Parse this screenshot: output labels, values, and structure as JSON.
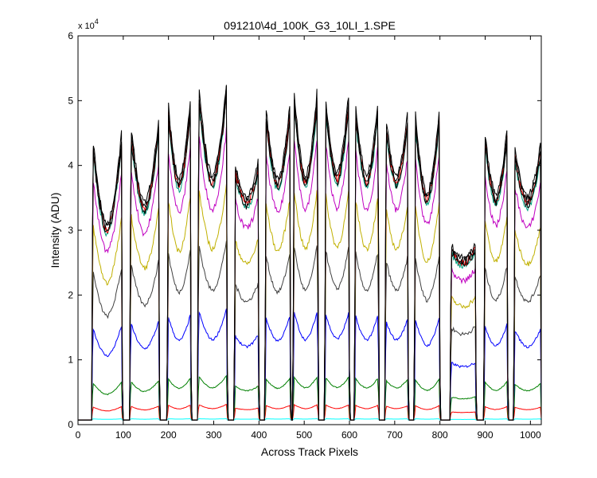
{
  "chart_data": {
    "type": "line",
    "title": "091210\\4d_100K_G3_10LI_1.SPE",
    "xlabel": "Across Track Pixels",
    "ylabel": "Intensity (ADU)",
    "y_multiplier_label": "x 10",
    "y_multiplier_exponent": "4",
    "xlim": [
      0,
      1024
    ],
    "ylim": [
      0,
      60000
    ],
    "x_ticks": [
      0,
      100,
      200,
      300,
      400,
      500,
      600,
      700,
      800,
      900,
      1000
    ],
    "y_ticks": [
      0,
      1,
      2,
      3,
      4,
      5,
      6
    ],
    "y_tick_scale": 10000,
    "grid": false,
    "legend": "none",
    "pattern": {
      "baseline": 700,
      "segments": [
        {
          "start": 30,
          "end": 98,
          "edge": 0.97,
          "center": 0.64
        },
        {
          "start": 114,
          "end": 180,
          "edge": 1.01,
          "center": 0.71
        },
        {
          "start": 197,
          "end": 250,
          "edge": 1.08,
          "center": 0.79
        },
        {
          "start": 264,
          "end": 330,
          "edge": 1.14,
          "center": 0.8
        },
        {
          "start": 345,
          "end": 400,
          "edge": 0.86,
          "center": 0.73
        },
        {
          "start": 413,
          "end": 470,
          "edge": 1.06,
          "center": 0.79
        },
        {
          "start": 475,
          "end": 531,
          "edge": 1.13,
          "center": 0.8
        },
        {
          "start": 545,
          "end": 600,
          "edge": 1.1,
          "center": 0.81
        },
        {
          "start": 611,
          "end": 665,
          "edge": 1.08,
          "center": 0.8
        },
        {
          "start": 678,
          "end": 730,
          "edge": 1.03,
          "center": 0.8
        },
        {
          "start": 743,
          "end": 800,
          "edge": 1.05,
          "center": 0.74
        },
        {
          "start": 822,
          "end": 880,
          "edge": 0.58,
          "center": 0.53
        },
        {
          "start": 897,
          "end": 950,
          "edge": 0.98,
          "center": 0.74
        },
        {
          "start": 963,
          "end": 1024,
          "edge": 0.92,
          "center": 0.73
        }
      ]
    },
    "series": [
      {
        "color": "#00ffff",
        "scale": 200
      },
      {
        "color": "#ff0000",
        "scale": 2200
      },
      {
        "color": "#008000",
        "scale": 6200
      },
      {
        "color": "#0000ff",
        "scale": 15500
      },
      {
        "color": "#404040",
        "scale": 25000
      },
      {
        "color": "#c0b000",
        "scale": 33000
      },
      {
        "color": "#c000c0",
        "scale": 40500
      },
      {
        "color": "#00a080",
        "scale": 45000
      },
      {
        "color": "#ff0000",
        "scale": 45800
      },
      {
        "color": "#000000",
        "scale": 45300
      },
      {
        "color": "#000000",
        "scale": 46300
      },
      {
        "color": "#000000",
        "scale": 47200
      }
    ]
  }
}
